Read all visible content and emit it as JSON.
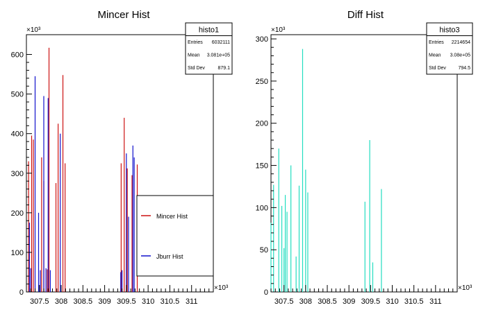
{
  "chart_data": [
    {
      "type": "bar",
      "title": "Mincer Hist",
      "multiplier_label": "×10³",
      "x_multiplier_label": "×10³",
      "xlim": [
        307.2,
        311.5
      ],
      "ylim": [
        0,
        650
      ],
      "x_ticks": [
        "307.5",
        "308",
        "308.5",
        "309",
        "309.5",
        "310",
        "310.5",
        "311"
      ],
      "x_tick_values": [
        307.5,
        308,
        308.5,
        309,
        309.5,
        310,
        310.5,
        311
      ],
      "y_ticks": [
        "0",
        "100",
        "200",
        "300",
        "400",
        "500",
        "600"
      ],
      "y_tick_values": [
        0,
        100,
        200,
        300,
        400,
        500,
        600
      ],
      "stats": {
        "name": "histo1",
        "rows": [
          {
            "label": "Entries",
            "value": "6032111"
          },
          {
            "label": "Mean",
            "value": "3.081e+05"
          },
          {
            "label": "Std Dev",
            "value": "879.1"
          }
        ]
      },
      "legend": {
        "placement": "right",
        "entries": [
          {
            "label": "Mincer Hist",
            "color": "#cc1111"
          },
          {
            "label": "Jburr Hist",
            "color": "#1111cc"
          }
        ]
      },
      "series": [
        {
          "color": "#cc1111",
          "x": [
            307.25,
            307.32,
            307.36,
            307.55,
            307.6,
            307.68,
            307.72,
            307.88,
            307.93,
            308.04,
            308.09,
            309.38,
            309.45,
            309.52,
            309.63,
            309.75
          ],
          "values": [
            330,
            395,
            385,
            340,
            280,
            57,
            617,
            275,
            425,
            548,
            325,
            325,
            440,
            312,
            295,
            322
          ]
        },
        {
          "color": "#1111cc",
          "x": [
            307.27,
            307.3,
            307.4,
            307.48,
            307.52,
            307.6,
            307.65,
            307.7,
            307.75,
            307.98,
            309.37,
            309.4,
            309.5,
            309.55,
            309.65,
            309.68
          ],
          "values": [
            175,
            60,
            545,
            200,
            55,
            495,
            60,
            490,
            55,
            400,
            50,
            55,
            350,
            190,
            370,
            340
          ]
        }
      ]
    },
    {
      "type": "bar",
      "title": "Diff Hist",
      "multiplier_label": "×10³",
      "x_multiplier_label": "×10³",
      "xlim": [
        307.2,
        311.5
      ],
      "ylim": [
        0,
        305
      ],
      "x_ticks": [
        "307.5",
        "308",
        "308.5",
        "309",
        "309.5",
        "310",
        "310.5",
        "311"
      ],
      "x_tick_values": [
        307.5,
        308,
        308.5,
        309,
        309.5,
        310,
        310.5,
        311
      ],
      "y_ticks": [
        "0",
        "50",
        "100",
        "150",
        "200",
        "250",
        "300"
      ],
      "y_tick_values": [
        0,
        50,
        100,
        150,
        200,
        250,
        300
      ],
      "stats": {
        "name": "histo3",
        "rows": [
          {
            "label": "Entries",
            "value": "2214654"
          },
          {
            "label": "Mean",
            "value": "3.08e+05"
          },
          {
            "label": "Std Dev",
            "value": "794.5"
          }
        ]
      },
      "series": [
        {
          "color": "#22ddc0",
          "x": [
            307.2,
            307.26,
            307.38,
            307.45,
            307.5,
            307.53,
            307.57,
            307.66,
            307.78,
            307.85,
            307.93,
            308.0,
            308.05,
            309.37,
            309.48,
            309.55,
            309.75
          ],
          "values": [
            82,
            127,
            170,
            102,
            52,
            115,
            95,
            150,
            42,
            126,
            288,
            145,
            118,
            107,
            180,
            35,
            122
          ]
        }
      ]
    }
  ]
}
